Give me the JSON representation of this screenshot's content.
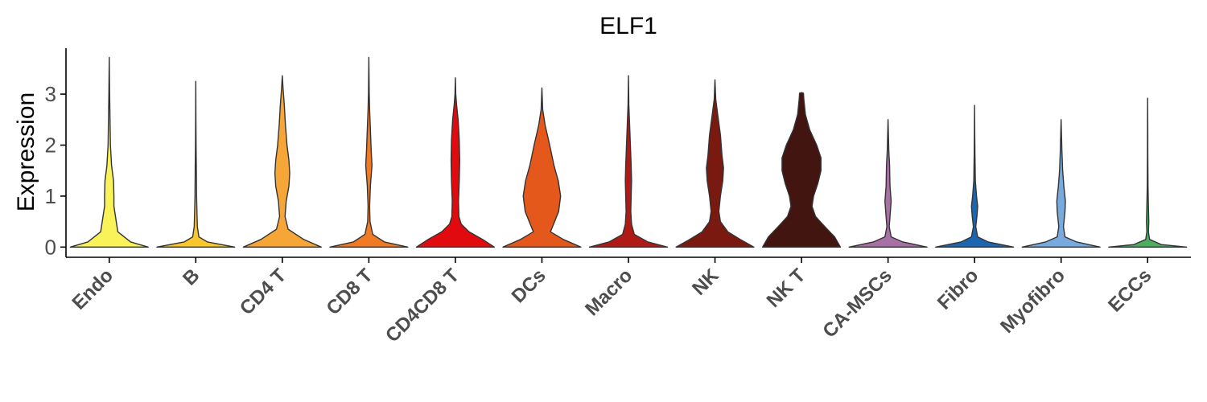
{
  "chart_data": {
    "type": "violin",
    "title": "ELF1",
    "ylabel": "Expression",
    "xlabel": "",
    "ylim": [
      -0.2,
      3.9
    ],
    "yticks": [
      0,
      1,
      2,
      3
    ],
    "grid": false,
    "legend": "none",
    "categories": [
      "Endo",
      "B",
      "CD4 T",
      "CD8 T",
      "CD4CD8 T",
      "DCs",
      "Macro",
      "NK",
      "NK T",
      "CA-MSCs",
      "Fibro",
      "Myofibro",
      "ECCs"
    ],
    "colors": [
      "#F9F259",
      "#F8C72E",
      "#F5A636",
      "#F17A24",
      "#E10A0E",
      "#E5581B",
      "#B01A15",
      "#7A1910",
      "#431510",
      "#A771A6",
      "#1A66B0",
      "#78AADD",
      "#4DAE60"
    ],
    "violins": [
      {
        "max": 3.72,
        "profile": [
          [
            0,
            1.0
          ],
          [
            0.1,
            0.55
          ],
          [
            0.3,
            0.22
          ],
          [
            0.5,
            0.18
          ],
          [
            0.8,
            0.12
          ],
          [
            1.0,
            0.12
          ],
          [
            1.3,
            0.11
          ],
          [
            1.6,
            0.06
          ],
          [
            2.0,
            0.03
          ],
          [
            2.5,
            0.02
          ],
          [
            3.0,
            0.01
          ],
          [
            3.72,
            0.0
          ]
        ]
      },
      {
        "max": 3.25,
        "profile": [
          [
            0,
            1.0
          ],
          [
            0.1,
            0.3
          ],
          [
            0.2,
            0.08
          ],
          [
            0.4,
            0.04
          ],
          [
            0.7,
            0.03
          ],
          [
            1.0,
            0.02
          ],
          [
            1.5,
            0.015
          ],
          [
            2.0,
            0.008
          ],
          [
            2.5,
            0.004
          ],
          [
            3.25,
            0.0
          ]
        ]
      },
      {
        "max": 3.36,
        "profile": [
          [
            0,
            1.0
          ],
          [
            0.15,
            0.55
          ],
          [
            0.35,
            0.15
          ],
          [
            0.6,
            0.07
          ],
          [
            0.9,
            0.1
          ],
          [
            1.2,
            0.17
          ],
          [
            1.45,
            0.19
          ],
          [
            1.7,
            0.17
          ],
          [
            2.0,
            0.12
          ],
          [
            2.4,
            0.08
          ],
          [
            2.8,
            0.05
          ],
          [
            3.1,
            0.02
          ],
          [
            3.36,
            0.0
          ]
        ]
      },
      {
        "max": 3.72,
        "profile": [
          [
            0,
            1.0
          ],
          [
            0.1,
            0.4
          ],
          [
            0.25,
            0.1
          ],
          [
            0.5,
            0.03
          ],
          [
            0.8,
            0.02
          ],
          [
            1.2,
            0.04
          ],
          [
            1.6,
            0.08
          ],
          [
            1.9,
            0.06
          ],
          [
            2.3,
            0.04
          ],
          [
            2.7,
            0.02
          ],
          [
            3.0,
            0.01
          ],
          [
            3.72,
            0.0
          ]
        ]
      },
      {
        "max": 3.32,
        "profile": [
          [
            0,
            1.0
          ],
          [
            0.15,
            0.7
          ],
          [
            0.3,
            0.35
          ],
          [
            0.45,
            0.15
          ],
          [
            0.6,
            0.09
          ],
          [
            0.9,
            0.08
          ],
          [
            1.3,
            0.1
          ],
          [
            1.7,
            0.11
          ],
          [
            2.1,
            0.1
          ],
          [
            2.5,
            0.07
          ],
          [
            2.8,
            0.03
          ],
          [
            3.0,
            0.01
          ],
          [
            3.32,
            0.0
          ]
        ]
      },
      {
        "max": 3.12,
        "profile": [
          [
            0,
            1.0
          ],
          [
            0.15,
            0.55
          ],
          [
            0.3,
            0.22
          ],
          [
            0.45,
            0.3
          ],
          [
            0.7,
            0.43
          ],
          [
            1.0,
            0.48
          ],
          [
            1.3,
            0.42
          ],
          [
            1.6,
            0.31
          ],
          [
            2.0,
            0.2
          ],
          [
            2.4,
            0.08
          ],
          [
            2.7,
            0.02
          ],
          [
            3.12,
            0.0
          ]
        ]
      },
      {
        "max": 3.36,
        "profile": [
          [
            0,
            1.0
          ],
          [
            0.1,
            0.5
          ],
          [
            0.25,
            0.15
          ],
          [
            0.45,
            0.08
          ],
          [
            0.7,
            0.06
          ],
          [
            1.0,
            0.07
          ],
          [
            1.3,
            0.08
          ],
          [
            1.6,
            0.07
          ],
          [
            2.0,
            0.05
          ],
          [
            2.4,
            0.03
          ],
          [
            2.8,
            0.01
          ],
          [
            3.36,
            0.0
          ]
        ]
      },
      {
        "max": 3.28,
        "profile": [
          [
            0,
            1.0
          ],
          [
            0.15,
            0.65
          ],
          [
            0.3,
            0.33
          ],
          [
            0.5,
            0.14
          ],
          [
            0.7,
            0.1
          ],
          [
            1.0,
            0.14
          ],
          [
            1.3,
            0.2
          ],
          [
            1.55,
            0.22
          ],
          [
            1.8,
            0.18
          ],
          [
            2.2,
            0.14
          ],
          [
            2.6,
            0.07
          ],
          [
            2.9,
            0.02
          ],
          [
            3.28,
            0.0
          ]
        ]
      },
      {
        "max": 3.02,
        "profile": [
          [
            0,
            1.0
          ],
          [
            0.2,
            0.85
          ],
          [
            0.4,
            0.6
          ],
          [
            0.6,
            0.36
          ],
          [
            0.8,
            0.27
          ],
          [
            1.0,
            0.31
          ],
          [
            1.25,
            0.42
          ],
          [
            1.5,
            0.5
          ],
          [
            1.75,
            0.5
          ],
          [
            2.0,
            0.39
          ],
          [
            2.3,
            0.21
          ],
          [
            2.6,
            0.1
          ],
          [
            2.9,
            0.06
          ],
          [
            3.02,
            0.05
          ],
          [
            3.03,
            0.0
          ]
        ]
      },
      {
        "max": 2.5,
        "profile": [
          [
            0,
            1.0
          ],
          [
            0.1,
            0.38
          ],
          [
            0.2,
            0.08
          ],
          [
            0.4,
            0.03
          ],
          [
            0.7,
            0.06
          ],
          [
            0.9,
            0.08
          ],
          [
            1.2,
            0.05
          ],
          [
            1.6,
            0.04
          ],
          [
            1.9,
            0.02
          ],
          [
            2.2,
            0.01
          ],
          [
            2.5,
            0.0
          ]
        ]
      },
      {
        "max": 2.78,
        "profile": [
          [
            0,
            1.0
          ],
          [
            0.1,
            0.35
          ],
          [
            0.2,
            0.08
          ],
          [
            0.4,
            0.03
          ],
          [
            0.6,
            0.06
          ],
          [
            0.8,
            0.08
          ],
          [
            1.0,
            0.05
          ],
          [
            1.3,
            0.02
          ],
          [
            1.8,
            0.01
          ],
          [
            2.2,
            0.005
          ],
          [
            2.78,
            0.0
          ]
        ]
      },
      {
        "max": 2.5,
        "profile": [
          [
            0,
            1.0
          ],
          [
            0.1,
            0.4
          ],
          [
            0.2,
            0.1
          ],
          [
            0.4,
            0.06
          ],
          [
            0.7,
            0.1
          ],
          [
            0.9,
            0.11
          ],
          [
            1.2,
            0.07
          ],
          [
            1.5,
            0.04
          ],
          [
            1.9,
            0.02
          ],
          [
            2.2,
            0.01
          ],
          [
            2.5,
            0.0
          ]
        ]
      },
      {
        "max": 2.92,
        "profile": [
          [
            0,
            1.0
          ],
          [
            0.05,
            0.35
          ],
          [
            0.15,
            0.05
          ],
          [
            0.3,
            0.02
          ],
          [
            0.5,
            0.03
          ],
          [
            0.8,
            0.02
          ],
          [
            1.2,
            0.01
          ],
          [
            1.8,
            0.005
          ],
          [
            2.4,
            0.003
          ],
          [
            2.92,
            0.0
          ]
        ]
      }
    ]
  }
}
